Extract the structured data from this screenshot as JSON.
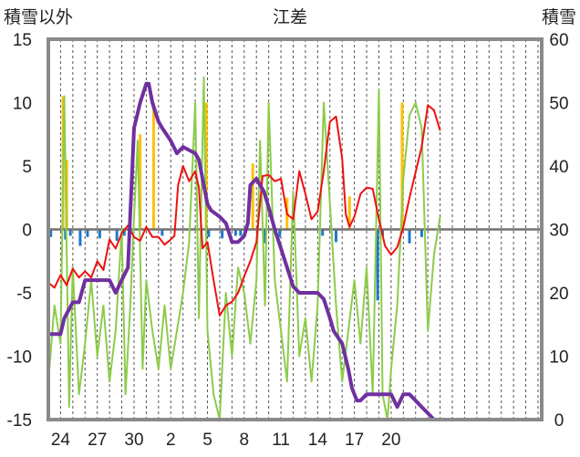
{
  "chart_data": {
    "type": "line",
    "title": "江差",
    "left_axis_label": "積雪以外",
    "right_axis_label": "積雪",
    "left_ylim": [
      -15,
      15
    ],
    "left_yticks": [
      15,
      10,
      5,
      0,
      -5,
      -10,
      -15
    ],
    "right_ylim": [
      0,
      60
    ],
    "right_yticks": [
      60,
      50,
      40,
      30,
      20,
      10,
      0
    ],
    "x_range_days": [
      0,
      40.3
    ],
    "x_tick_labels": [
      {
        "day": 1,
        "label": "24"
      },
      {
        "day": 4,
        "label": "27"
      },
      {
        "day": 7,
        "label": "30"
      },
      {
        "day": 10,
        "label": "2"
      },
      {
        "day": 13,
        "label": "5"
      },
      {
        "day": 16,
        "label": "8"
      },
      {
        "day": 19,
        "label": "11"
      },
      {
        "day": 22,
        "label": "14"
      },
      {
        "day": 25,
        "label": "17"
      },
      {
        "day": 28,
        "label": "20"
      }
    ],
    "grid_vertical_every_day": true,
    "series": [
      {
        "key": "temperature_diff",
        "axis": "left",
        "color": "#ee1111",
        "points": [
          [
            0,
            -4.2
          ],
          [
            0.5,
            -4.6
          ],
          [
            1,
            -3.6
          ],
          [
            1.5,
            -4.4
          ],
          [
            2,
            -3.1
          ],
          [
            2.5,
            -3.8
          ],
          [
            3,
            -3.3
          ],
          [
            3.5,
            -3.8
          ],
          [
            4,
            -2.5
          ],
          [
            4.5,
            -3.2
          ],
          [
            5,
            -0.8
          ],
          [
            5.5,
            -1.5
          ],
          [
            6,
            -0.3
          ],
          [
            6.5,
            0.3
          ],
          [
            7,
            -0.6
          ],
          [
            7.5,
            -0.9
          ],
          [
            8,
            0.2
          ],
          [
            8.5,
            -0.6
          ],
          [
            9,
            -0.6
          ],
          [
            9.5,
            -1.2
          ],
          [
            10,
            -0.8
          ],
          [
            10.3,
            -0.5
          ],
          [
            10.6,
            3.5
          ],
          [
            11,
            5.0
          ],
          [
            11.5,
            3.8
          ],
          [
            12,
            4.6
          ],
          [
            12.3,
            3.3
          ],
          [
            12.6,
            -1.5
          ],
          [
            13,
            -1.0
          ],
          [
            13.5,
            -4.0
          ],
          [
            14,
            -6.8
          ],
          [
            14.5,
            -6.0
          ],
          [
            15,
            -5.7
          ],
          [
            15.5,
            -5.0
          ],
          [
            16,
            -3.7
          ],
          [
            16.5,
            -2.5
          ],
          [
            17,
            -1.0
          ],
          [
            17.5,
            4.2
          ],
          [
            18,
            4.3
          ],
          [
            18.5,
            3.8
          ],
          [
            19,
            4.0
          ],
          [
            19.5,
            1.2
          ],
          [
            20,
            0.8
          ],
          [
            20.5,
            4.6
          ],
          [
            21,
            2.8
          ],
          [
            21.5,
            0.8
          ],
          [
            22,
            1.4
          ],
          [
            22.5,
            4.6
          ],
          [
            23,
            8.5
          ],
          [
            23.5,
            8.9
          ],
          [
            24,
            5.6
          ],
          [
            24.3,
            1.2
          ],
          [
            24.6,
            0.2
          ],
          [
            25,
            1.0
          ],
          [
            25.5,
            2.8
          ],
          [
            26,
            3.3
          ],
          [
            26.5,
            3.2
          ],
          [
            27,
            0.8
          ],
          [
            27.5,
            -1.3
          ],
          [
            28,
            -2.0
          ],
          [
            28.5,
            -1.4
          ],
          [
            29,
            0.2
          ],
          [
            29.5,
            2.5
          ],
          [
            30,
            4.5
          ],
          [
            30.5,
            6.5
          ],
          [
            31,
            9.8
          ],
          [
            31.5,
            9.4
          ],
          [
            32,
            7.8
          ]
        ]
      },
      {
        "key": "wind_speed",
        "axis": "left",
        "color": "#8ccc4a",
        "points": [
          [
            0,
            -12
          ],
          [
            0.5,
            -6
          ],
          [
            1,
            -9
          ],
          [
            1.3,
            10.5
          ],
          [
            1.7,
            -14
          ],
          [
            2,
            -3
          ],
          [
            2.5,
            -13
          ],
          [
            3,
            -9
          ],
          [
            3.5,
            -4
          ],
          [
            4,
            -10
          ],
          [
            4.5,
            -6
          ],
          [
            5,
            -12
          ],
          [
            5.5,
            -8
          ],
          [
            6,
            0
          ],
          [
            6.3,
            -13
          ],
          [
            6.7,
            -6
          ],
          [
            7,
            1
          ],
          [
            7.3,
            7
          ],
          [
            7.7,
            -11
          ],
          [
            8,
            -4
          ],
          [
            8.5,
            -8
          ],
          [
            9,
            -11
          ],
          [
            9.5,
            -6
          ],
          [
            10,
            -11
          ],
          [
            10.5,
            -8
          ],
          [
            11,
            -5
          ],
          [
            11.5,
            -1
          ],
          [
            12,
            10
          ],
          [
            12.3,
            -7
          ],
          [
            12.7,
            12
          ],
          [
            13,
            -8
          ],
          [
            13.5,
            -13
          ],
          [
            14,
            -15
          ],
          [
            14.5,
            -5
          ],
          [
            15,
            -10
          ],
          [
            15.5,
            -3
          ],
          [
            16,
            -5
          ],
          [
            16.5,
            -9
          ],
          [
            17,
            -4
          ],
          [
            17.3,
            7
          ],
          [
            17.7,
            -6
          ],
          [
            18,
            10
          ],
          [
            18.5,
            -4
          ],
          [
            19,
            -8
          ],
          [
            19.5,
            -12
          ],
          [
            20,
            3
          ],
          [
            20.5,
            -10
          ],
          [
            21,
            -7
          ],
          [
            21.5,
            -12
          ],
          [
            22,
            -6
          ],
          [
            22.5,
            10
          ],
          [
            23,
            2
          ],
          [
            23.5,
            -6
          ],
          [
            24,
            -12
          ],
          [
            24.5,
            -8
          ],
          [
            25,
            -4
          ],
          [
            25.5,
            -9
          ],
          [
            26,
            -3
          ],
          [
            26.5,
            -13
          ],
          [
            27,
            11
          ],
          [
            27.3,
            -13
          ],
          [
            27.7,
            -15
          ],
          [
            28,
            -11
          ],
          [
            28.5,
            -6
          ],
          [
            29,
            4
          ],
          [
            29.5,
            9
          ],
          [
            30,
            10
          ],
          [
            30.5,
            8
          ],
          [
            31,
            -8
          ],
          [
            31.5,
            -2
          ],
          [
            32,
            1
          ]
        ]
      },
      {
        "key": "snow_depth",
        "axis": "right",
        "color": "#7030a0",
        "points": [
          [
            0,
            13.5
          ],
          [
            0.5,
            13.5
          ],
          [
            1,
            13.5
          ],
          [
            1.3,
            16
          ],
          [
            2,
            18.5
          ],
          [
            2.5,
            18.5
          ],
          [
            3,
            22
          ],
          [
            4,
            22
          ],
          [
            5,
            22
          ],
          [
            5.5,
            20
          ],
          [
            6,
            22
          ],
          [
            6.5,
            24
          ],
          [
            7,
            46
          ],
          [
            7.5,
            50
          ],
          [
            8,
            53
          ],
          [
            8.2,
            53
          ],
          [
            8.5,
            50
          ],
          [
            9,
            47
          ],
          [
            9.3,
            46
          ],
          [
            10,
            44
          ],
          [
            10.5,
            42
          ],
          [
            11,
            43
          ],
          [
            11.5,
            42.5
          ],
          [
            12,
            42
          ],
          [
            12.3,
            41
          ],
          [
            12.6,
            38
          ],
          [
            13,
            34
          ],
          [
            13.3,
            33
          ],
          [
            14,
            32
          ],
          [
            14.5,
            31
          ],
          [
            15,
            28
          ],
          [
            15.5,
            28
          ],
          [
            16,
            29
          ],
          [
            16.3,
            31
          ],
          [
            16.5,
            37
          ],
          [
            17,
            38
          ],
          [
            17.3,
            37
          ],
          [
            17.6,
            36
          ],
          [
            18,
            33.5
          ],
          [
            18.5,
            30
          ],
          [
            19,
            27
          ],
          [
            19.5,
            24
          ],
          [
            20,
            21
          ],
          [
            20.5,
            20
          ],
          [
            21,
            20
          ],
          [
            22,
            20
          ],
          [
            22.5,
            19
          ],
          [
            23,
            16
          ],
          [
            23.3,
            14
          ],
          [
            24,
            12
          ],
          [
            24.5,
            8
          ],
          [
            24.8,
            5
          ],
          [
            25,
            4
          ],
          [
            25.2,
            3
          ],
          [
            25.5,
            3
          ],
          [
            26,
            4
          ],
          [
            26.5,
            4
          ],
          [
            27,
            4
          ],
          [
            27.5,
            4
          ],
          [
            28,
            4
          ],
          [
            28.5,
            2
          ],
          [
            29,
            4
          ],
          [
            29.5,
            4
          ],
          [
            30,
            3
          ],
          [
            30.5,
            2
          ],
          [
            31,
            1
          ],
          [
            31.5,
            0
          ],
          [
            32,
            0
          ]
        ]
      }
    ],
    "precip_bars": {
      "axis": "left",
      "color": "#ffc000",
      "values": [
        [
          1.2,
          10.5
        ],
        [
          1.5,
          5.5
        ],
        [
          7.5,
          7.5
        ],
        [
          8.6,
          10
        ],
        [
          12.9,
          10
        ],
        [
          16.7,
          5.2
        ],
        [
          19.5,
          2.5
        ],
        [
          24.6,
          2.6
        ],
        [
          28.9,
          10
        ]
      ]
    },
    "sunshine_bars": {
      "axis": "left",
      "color": "#1f78c8",
      "values": [
        [
          0.2,
          -0.6
        ],
        [
          1.4,
          -0.8
        ],
        [
          1.8,
          -0.5
        ],
        [
          2.6,
          -1.3
        ],
        [
          3.2,
          -0.6
        ],
        [
          4.2,
          -0.7
        ],
        [
          5.6,
          -0.9
        ],
        [
          6.2,
          -0.5
        ],
        [
          9.3,
          -0.5
        ],
        [
          13.1,
          -0.6
        ],
        [
          14.2,
          -0.7
        ],
        [
          15.3,
          -0.5
        ],
        [
          15.7,
          -0.5
        ],
        [
          17.7,
          -1.1
        ],
        [
          18.9,
          -0.6
        ],
        [
          22.4,
          -0.5
        ],
        [
          23.5,
          -1.0
        ],
        [
          26.9,
          -5.6
        ],
        [
          27.3,
          -0.5
        ],
        [
          29.5,
          -1.1
        ],
        [
          30.5,
          -0.6
        ]
      ]
    }
  }
}
